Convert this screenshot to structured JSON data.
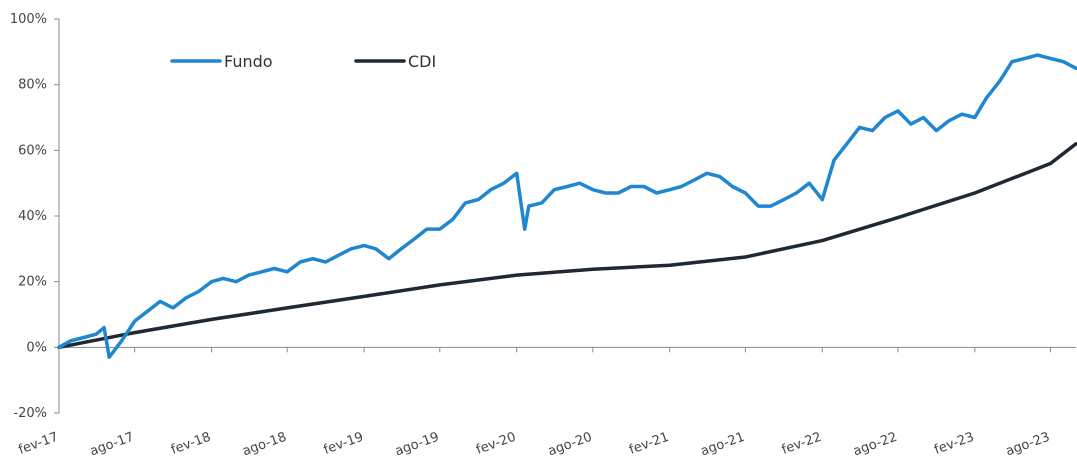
{
  "chart_data": {
    "type": "line",
    "title": "",
    "xlabel": "",
    "ylabel": "",
    "ylim": [
      -20,
      100
    ],
    "y_ticks": [
      "-20%",
      "0%",
      "20%",
      "40%",
      "60%",
      "80%",
      "100%"
    ],
    "y_tick_values": [
      -20,
      0,
      20,
      40,
      60,
      80,
      100
    ],
    "x_ticks": [
      "fev-17",
      "ago-17",
      "fev-18",
      "ago-18",
      "fev-19",
      "ago-19",
      "fev-20",
      "ago-20",
      "fev-21",
      "ago-21",
      "fev-22",
      "ago-22",
      "fev-23",
      "ago-23"
    ],
    "x_tick_dates": [
      "2017-02",
      "2017-08",
      "2018-02",
      "2018-08",
      "2019-02",
      "2019-08",
      "2020-02",
      "2020-08",
      "2021-02",
      "2021-08",
      "2022-02",
      "2022-08",
      "2023-02",
      "2023-08"
    ],
    "xlim": [
      "2017-02",
      "2023-10"
    ],
    "grid": false,
    "legend_position": "top-left",
    "series": [
      {
        "name": "Fundo",
        "color": "#1f86d1",
        "x": [
          "2017-02",
          "2017-03",
          "2017-04",
          "2017-05",
          "2017-05-20",
          "2017-06",
          "2017-07",
          "2017-08",
          "2017-09",
          "2017-10",
          "2017-11",
          "2017-12",
          "2018-01",
          "2018-02",
          "2018-03",
          "2018-04",
          "2018-05",
          "2018-06",
          "2018-07",
          "2018-08",
          "2018-09",
          "2018-10",
          "2018-11",
          "2018-12",
          "2019-01",
          "2019-02",
          "2019-03",
          "2019-04",
          "2019-05",
          "2019-06",
          "2019-07",
          "2019-08",
          "2019-09",
          "2019-10",
          "2019-11",
          "2019-12",
          "2020-01",
          "2020-02",
          "2020-02-20",
          "2020-03",
          "2020-04",
          "2020-05",
          "2020-06",
          "2020-07",
          "2020-08",
          "2020-09",
          "2020-10",
          "2020-11",
          "2020-12",
          "2021-01",
          "2021-02",
          "2021-03",
          "2021-04",
          "2021-05",
          "2021-06",
          "2021-07",
          "2021-08",
          "2021-09",
          "2021-10",
          "2021-11",
          "2021-12",
          "2022-01",
          "2022-02",
          "2022-03",
          "2022-04",
          "2022-05",
          "2022-06",
          "2022-07",
          "2022-08",
          "2022-09",
          "2022-10",
          "2022-11",
          "2022-12",
          "2023-01",
          "2023-02",
          "2023-03",
          "2023-04",
          "2023-05",
          "2023-06",
          "2023-07",
          "2023-08",
          "2023-09",
          "2023-10"
        ],
        "values": [
          0,
          2,
          3,
          4,
          6,
          -3,
          2,
          8,
          11,
          14,
          12,
          15,
          17,
          20,
          21,
          20,
          22,
          23,
          24,
          23,
          26,
          27,
          26,
          28,
          30,
          31,
          30,
          27,
          30,
          33,
          36,
          36,
          39,
          44,
          45,
          48,
          50,
          53,
          36,
          43,
          44,
          48,
          49,
          50,
          48,
          47,
          47,
          49,
          49,
          47,
          48,
          49,
          51,
          53,
          52,
          49,
          47,
          43,
          43,
          45,
          47,
          50,
          45,
          57,
          62,
          67,
          66,
          70,
          72,
          68,
          70,
          66,
          69,
          71,
          70,
          76,
          81,
          87,
          88,
          89,
          88,
          87,
          85
        ]
      },
      {
        "name": "CDI",
        "color": "#1f2933",
        "x": [
          "2017-02",
          "2017-08",
          "2018-02",
          "2018-08",
          "2019-02",
          "2019-08",
          "2020-02",
          "2020-08",
          "2021-02",
          "2021-08",
          "2022-02",
          "2022-08",
          "2023-02",
          "2023-08",
          "2023-10"
        ],
        "values": [
          0,
          4.5,
          8.5,
          12,
          15.5,
          19,
          22,
          23.8,
          25,
          27.5,
          32.5,
          39.5,
          47,
          56,
          62
        ]
      }
    ]
  }
}
